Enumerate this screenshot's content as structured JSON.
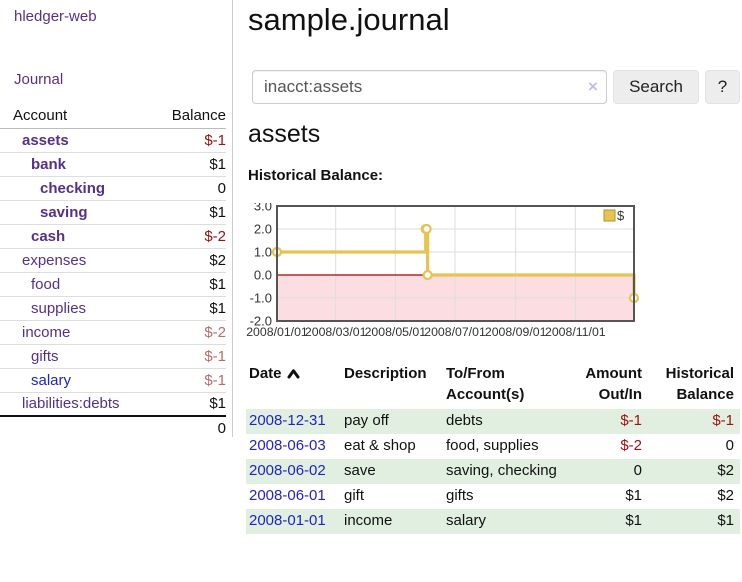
{
  "app": {
    "title": "hledger-web"
  },
  "nav": {
    "journal_label": "Journal"
  },
  "sidebar": {
    "header": {
      "account": "Account",
      "balance": "Balance"
    },
    "accounts": [
      {
        "name": "assets",
        "level": 1,
        "balance": "$-1",
        "bold": true,
        "balance_style": "neg-strong",
        "link_style": "visited"
      },
      {
        "name": "bank",
        "level": 2,
        "balance": "$1",
        "bold": true,
        "balance_style": "pos",
        "link_style": "visited"
      },
      {
        "name": "checking",
        "level": 3,
        "balance": "0",
        "bold": true,
        "balance_style": "pos",
        "link_style": "visited"
      },
      {
        "name": "saving",
        "level": 3,
        "balance": "$1",
        "bold": true,
        "balance_style": "pos",
        "link_style": "visited"
      },
      {
        "name": "cash",
        "level": 2,
        "balance": "$-2",
        "bold": true,
        "balance_style": "neg-strong",
        "link_style": "visited"
      },
      {
        "name": "expenses",
        "level": 1,
        "balance": "$2",
        "bold": false,
        "balance_style": "pos",
        "link_style": "visited"
      },
      {
        "name": "food",
        "level": 2,
        "balance": "$1",
        "bold": false,
        "balance_style": "pos",
        "link_style": "visited"
      },
      {
        "name": "supplies",
        "level": 2,
        "balance": "$1",
        "bold": false,
        "balance_style": "pos",
        "link_style": "visited"
      },
      {
        "name": "income",
        "level": 1,
        "balance": "$-2",
        "bold": false,
        "balance_style": "neg-muted",
        "link_style": "visited"
      },
      {
        "name": "gifts",
        "level": 2,
        "balance": "$-1",
        "bold": false,
        "balance_style": "neg-muted",
        "link_style": "visited"
      },
      {
        "name": "salary",
        "level": 2,
        "balance": "$-1",
        "bold": false,
        "balance_style": "neg-muted",
        "link_style": "unvisited"
      },
      {
        "name": "liabilities:debts",
        "level": 1,
        "balance": "$1",
        "bold": false,
        "balance_style": "pos",
        "link_style": "visited"
      }
    ],
    "total": "0"
  },
  "header": {
    "title": "sample.journal"
  },
  "search": {
    "value": "inacct:assets",
    "placeholder": "",
    "clear_icon": "×",
    "button_label": "Search",
    "help_label": "?"
  },
  "account_page": {
    "title": "assets",
    "chart_label": "Historical Balance:"
  },
  "chart_data": {
    "type": "line",
    "step": true,
    "title": "Historical Balance",
    "series": [
      {
        "name": "$",
        "color": "#e8c44f",
        "points": [
          {
            "date": "2008-01-01",
            "day": 0,
            "value": 1
          },
          {
            "date": "2008-06-01",
            "day": 152,
            "value": 2
          },
          {
            "date": "2008-06-02",
            "day": 153,
            "value": 2
          },
          {
            "date": "2008-06-03",
            "day": 154,
            "value": 0
          },
          {
            "date": "2008-12-31",
            "day": 365,
            "value": -1
          }
        ]
      }
    ],
    "x_ticks": [
      {
        "label": "2008/01/01",
        "day": 0
      },
      {
        "label": "2008/03/01",
        "day": 60
      },
      {
        "label": "2008/05/01",
        "day": 121
      },
      {
        "label": "2008/07/01",
        "day": 182
      },
      {
        "label": "2008/09/01",
        "day": 244
      },
      {
        "label": "2008/11/01",
        "day": 305
      }
    ],
    "x_domain_days": 365,
    "y_ticks": [
      3.0,
      2.0,
      1.0,
      0.0,
      -1.0,
      -2.0
    ],
    "ylim": [
      -2.0,
      3.0
    ],
    "legend": {
      "label": "$",
      "position": "top-right"
    },
    "negative_region_color": "#fcdee2",
    "zero_line_color": "#aa0000",
    "grid_color": "#dddddd",
    "border_color": "#555555",
    "tick_color": "#333333"
  },
  "register": {
    "columns": {
      "date": "Date",
      "description": "Description",
      "accounts": "To/From Account(s)",
      "amount": "Amount Out/In",
      "balance": "Historical Balance"
    },
    "sort": {
      "column": "Date",
      "direction": "ascending"
    },
    "rows": [
      {
        "date": "2008-12-31",
        "description": "pay off",
        "accounts": "debts",
        "amount": "$-1",
        "balance": "$-1"
      },
      {
        "date": "2008-06-03",
        "description": "eat & shop",
        "accounts": "food, supplies",
        "amount": "$-2",
        "balance": "0"
      },
      {
        "date": "2008-06-02",
        "description": "save",
        "accounts": "saving, checking",
        "amount": "0",
        "balance": "$2"
      },
      {
        "date": "2008-06-01",
        "description": "gift",
        "accounts": "gifts",
        "amount": "$1",
        "balance": "$2"
      },
      {
        "date": "2008-01-01",
        "description": "income",
        "accounts": "salary",
        "amount": "$1",
        "balance": "$1"
      }
    ]
  },
  "colors": {
    "link_purple": "#55308f",
    "link_blue": "#2222cc",
    "negative_strong": "#a01010",
    "negative_muted": "#b96c6c",
    "row_green": "#e0efe0",
    "chart_gold": "#e8c44f"
  }
}
